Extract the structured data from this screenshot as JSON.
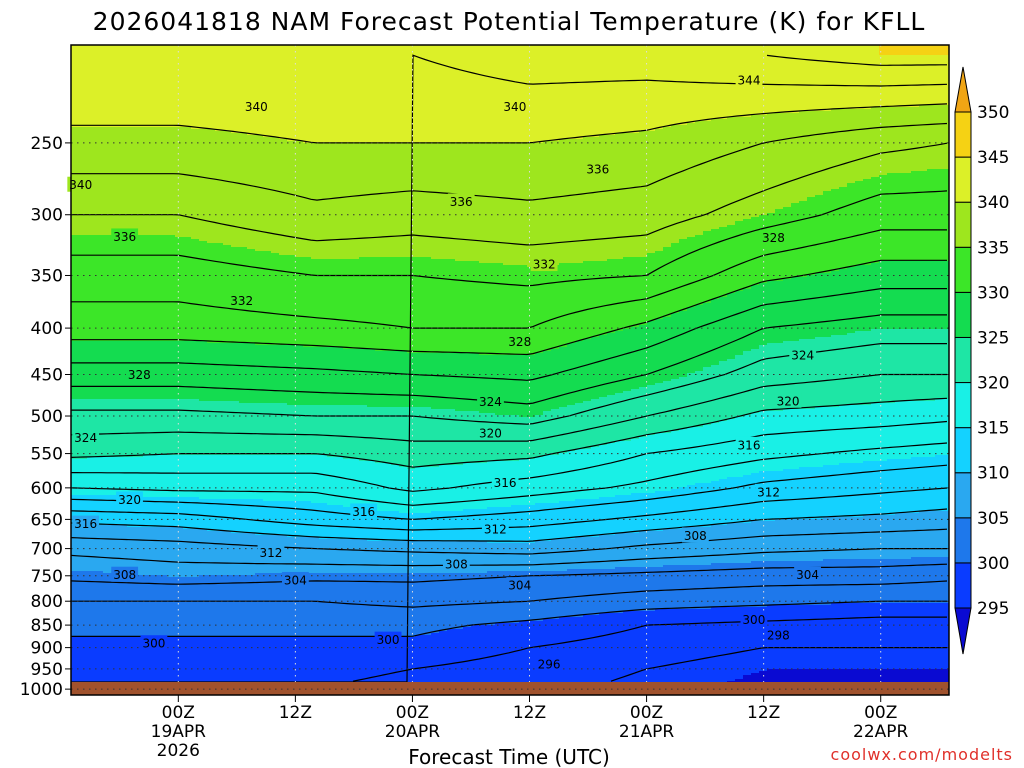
{
  "chart_data": {
    "type": "heatmap",
    "title": "2026041818 NAM Forecast Potential Temperature (K) for KFLL",
    "xlabel": "Forecast Time (UTC)",
    "ylabel": "",
    "units": "K",
    "credit": "coolwx.com/modelts",
    "x_range_hours": [
      -5,
      85
    ],
    "y_scale": "log",
    "y_range_hpa": [
      1015,
      195
    ],
    "x_ticks": [
      {
        "hour": 6,
        "lines": [
          "00Z",
          "19APR",
          "2026"
        ]
      },
      {
        "hour": 18,
        "lines": [
          "12Z"
        ]
      },
      {
        "hour": 30,
        "lines": [
          "00Z",
          "20APR"
        ]
      },
      {
        "hour": 42,
        "lines": [
          "12Z"
        ]
      },
      {
        "hour": 54,
        "lines": [
          "00Z",
          "21APR"
        ]
      },
      {
        "hour": 66,
        "lines": [
          "12Z"
        ]
      },
      {
        "hour": 78,
        "lines": [
          "00Z",
          "22APR"
        ]
      }
    ],
    "y_ticks": [
      250,
      300,
      350,
      400,
      450,
      500,
      550,
      600,
      650,
      700,
      750,
      800,
      850,
      900,
      950,
      1000
    ],
    "colorbar": {
      "levels": [
        295,
        300,
        305,
        310,
        315,
        320,
        325,
        330,
        335,
        340,
        345,
        350
      ],
      "colors": [
        "#0a0ad2",
        "#0a3cff",
        "#1e78eb",
        "#2aa8f0",
        "#14d2ff",
        "#19f0e6",
        "#1ee6a5",
        "#14dc50",
        "#3ce628",
        "#9ee61e",
        "#dcf028",
        "#f5d214",
        "#f0a514"
      ]
    },
    "contour_interval_k": 2,
    "surface_color": "#a0522d",
    "profile": {
      "description": "potential temperature (K) at selected pressure levels for forecast hours",
      "hours": [
        -5,
        6,
        20,
        30,
        42,
        54,
        66,
        78,
        85
      ],
      "levels_hpa": [
        1000,
        950,
        900,
        850,
        800,
        750,
        700,
        650,
        600,
        550,
        500,
        450,
        400,
        350,
        300,
        250,
        200
      ],
      "values": [
        [
          298.5,
          299.0,
          299.5,
          300.5,
          302,
          304.5,
          306.5,
          310.5,
          316,
          320.5,
          323.5,
          327,
          331,
          333,
          336,
          339.5,
          342
        ],
        [
          298.0,
          299.0,
          299.5,
          300.5,
          302,
          305,
          307,
          311,
          316.5,
          320,
          323.5,
          327,
          331,
          333,
          336,
          339.5,
          342
        ],
        [
          298.0,
          298.5,
          299.5,
          300.5,
          302,
          304.5,
          308,
          313,
          316.5,
          320,
          324,
          327.5,
          331.5,
          334,
          337.5,
          340,
          342
        ],
        [
          297.5,
          298,
          299.5,
          300.5,
          302.5,
          304.5,
          308.5,
          314,
          318.5,
          321,
          324,
          328,
          332,
          334,
          337,
          340,
          342
        ],
        [
          296.5,
          297,
          298,
          299.5,
          302,
          304,
          309,
          313,
          317,
          320.5,
          325,
          328.5,
          332,
          334.5,
          337.5,
          340,
          343
        ],
        [
          295.5,
          296,
          297,
          298,
          301,
          303.5,
          307.5,
          311.5,
          315.5,
          318,
          322,
          326,
          329.5,
          334,
          337,
          339.5,
          343
        ],
        [
          294.5,
          295,
          296,
          297.5,
          300.5,
          303,
          306.5,
          310,
          313.5,
          316.5,
          319.5,
          323,
          326,
          330.5,
          335,
          338,
          344
        ],
        [
          294.5,
          295,
          296,
          297,
          300,
          303,
          306,
          309.5,
          312.5,
          315.5,
          319,
          322,
          325,
          329,
          333,
          336.5,
          345
        ],
        [
          294.5,
          295,
          296,
          297,
          300,
          302.5,
          306,
          309,
          312,
          315,
          318.5,
          322,
          325,
          329,
          333,
          336,
          345
        ]
      ]
    },
    "contour_labels": [
      {
        "text": "340",
        "hour": 14,
        "p": 228
      },
      {
        "text": "340",
        "hour": 40.5,
        "p": 228
      },
      {
        "text": "344",
        "hour": 64.5,
        "p": 213
      },
      {
        "text": "340",
        "hour": -4,
        "p": 278
      },
      {
        "text": "336",
        "hour": 49,
        "p": 267
      },
      {
        "text": "336",
        "hour": 35,
        "p": 290
      },
      {
        "text": "336",
        "hour": 0.5,
        "p": 317
      },
      {
        "text": "332",
        "hour": 43.5,
        "p": 340
      },
      {
        "text": "328",
        "hour": 67,
        "p": 318
      },
      {
        "text": "332",
        "hour": 12.5,
        "p": 373
      },
      {
        "text": "328",
        "hour": 41,
        "p": 414
      },
      {
        "text": "324",
        "hour": 70,
        "p": 428
      },
      {
        "text": "328",
        "hour": 2,
        "p": 450
      },
      {
        "text": "324",
        "hour": 38,
        "p": 482
      },
      {
        "text": "320",
        "hour": 68.5,
        "p": 481
      },
      {
        "text": "324",
        "hour": -3.5,
        "p": 528
      },
      {
        "text": "320",
        "hour": 38,
        "p": 522
      },
      {
        "text": "316",
        "hour": 64.5,
        "p": 538
      },
      {
        "text": "316",
        "hour": 39.5,
        "p": 592
      },
      {
        "text": "320",
        "hour": 1,
        "p": 618
      },
      {
        "text": "312",
        "hour": 66.5,
        "p": 606
      },
      {
        "text": "316",
        "hour": 25,
        "p": 637
      },
      {
        "text": "316",
        "hour": -3.5,
        "p": 657
      },
      {
        "text": "312",
        "hour": 38.5,
        "p": 666
      },
      {
        "text": "308",
        "hour": 59,
        "p": 677
      },
      {
        "text": "312",
        "hour": 15.5,
        "p": 707
      },
      {
        "text": "308",
        "hour": 34.5,
        "p": 728
      },
      {
        "text": "308",
        "hour": 0.5,
        "p": 748
      },
      {
        "text": "304",
        "hour": 18,
        "p": 758
      },
      {
        "text": "304",
        "hour": 41,
        "p": 768
      },
      {
        "text": "304",
        "hour": 70.5,
        "p": 748
      },
      {
        "text": "300",
        "hour": 65,
        "p": 838
      },
      {
        "text": "298",
        "hour": 67.5,
        "p": 872
      },
      {
        "text": "300",
        "hour": 3.5,
        "p": 890
      },
      {
        "text": "300",
        "hour": 27.5,
        "p": 882
      },
      {
        "text": "296",
        "hour": 44,
        "p": 938
      }
    ]
  }
}
